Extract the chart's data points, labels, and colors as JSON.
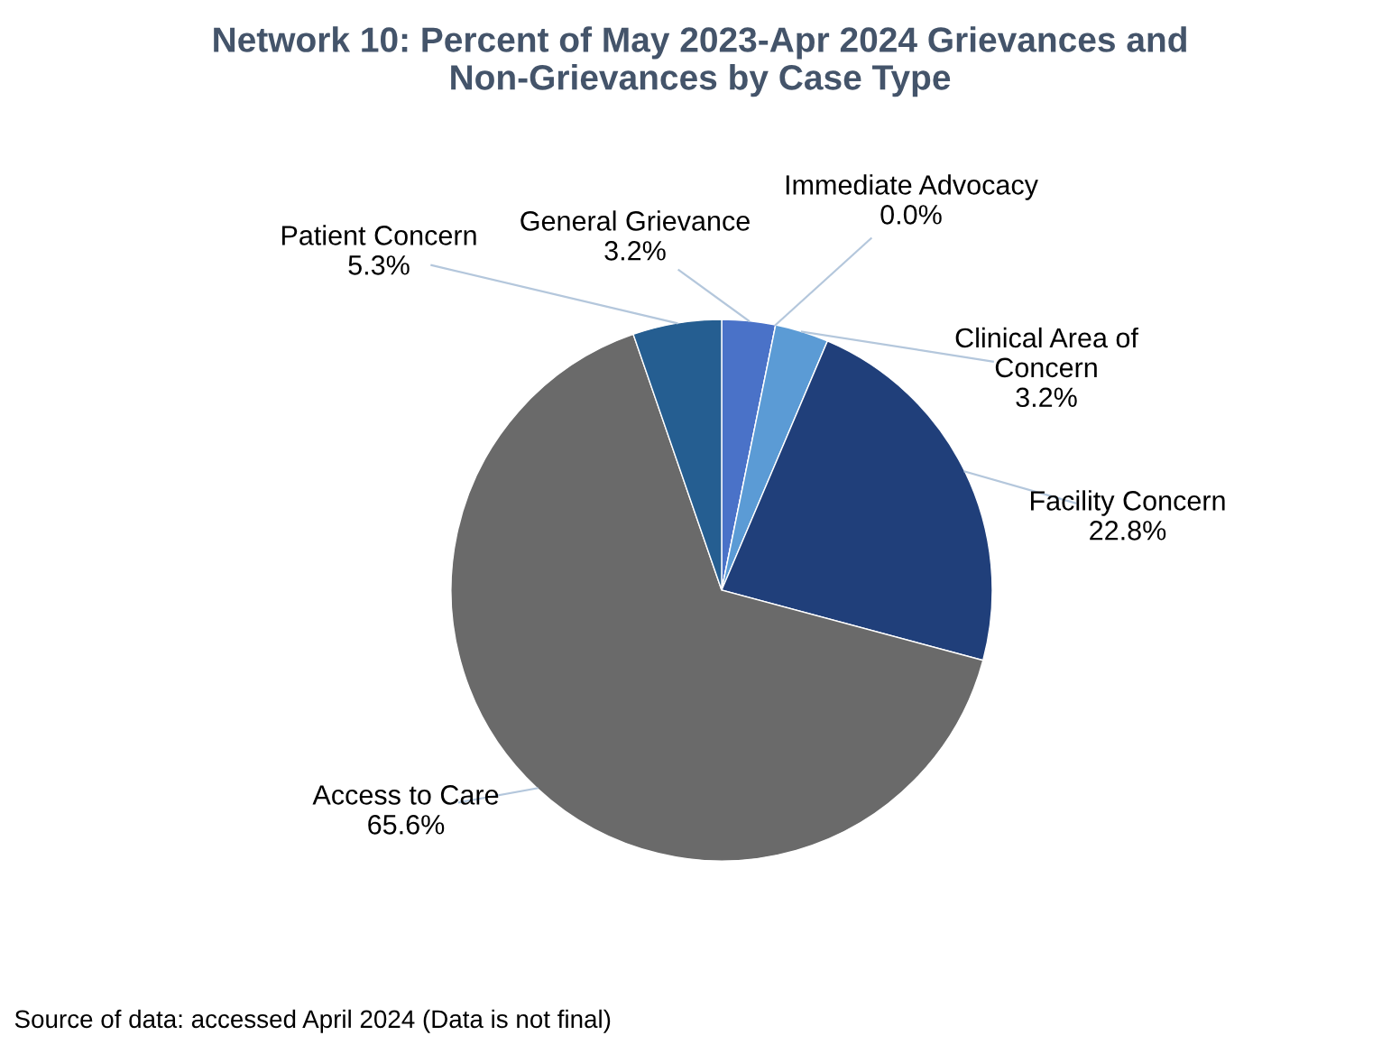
{
  "chart_data": {
    "type": "pie",
    "title": "Network 10: Percent of May 2023-Apr 2024 Grievances and\nNon-Grievances by Case Type",
    "categories": [
      "General Grievance",
      "Immediate Advocacy",
      "Clinical Area of\nConcern",
      "Facility Concern",
      "Access to Care",
      "Patient Concern"
    ],
    "values": [
      3.2,
      0.0,
      3.2,
      22.8,
      65.6,
      5.3
    ],
    "colors": [
      "#4a72c8",
      "#3a6fc0",
      "#5b9bd5",
      "#203f7a",
      "#6a6a6a",
      "#255e91"
    ],
    "value_labels": [
      "3.2%",
      "0.0%",
      "3.2%",
      "22.8%",
      "65.6%",
      "5.3%"
    ],
    "annotations": [
      "Source of data: accessed April 2024 (Data is not final)"
    ]
  }
}
